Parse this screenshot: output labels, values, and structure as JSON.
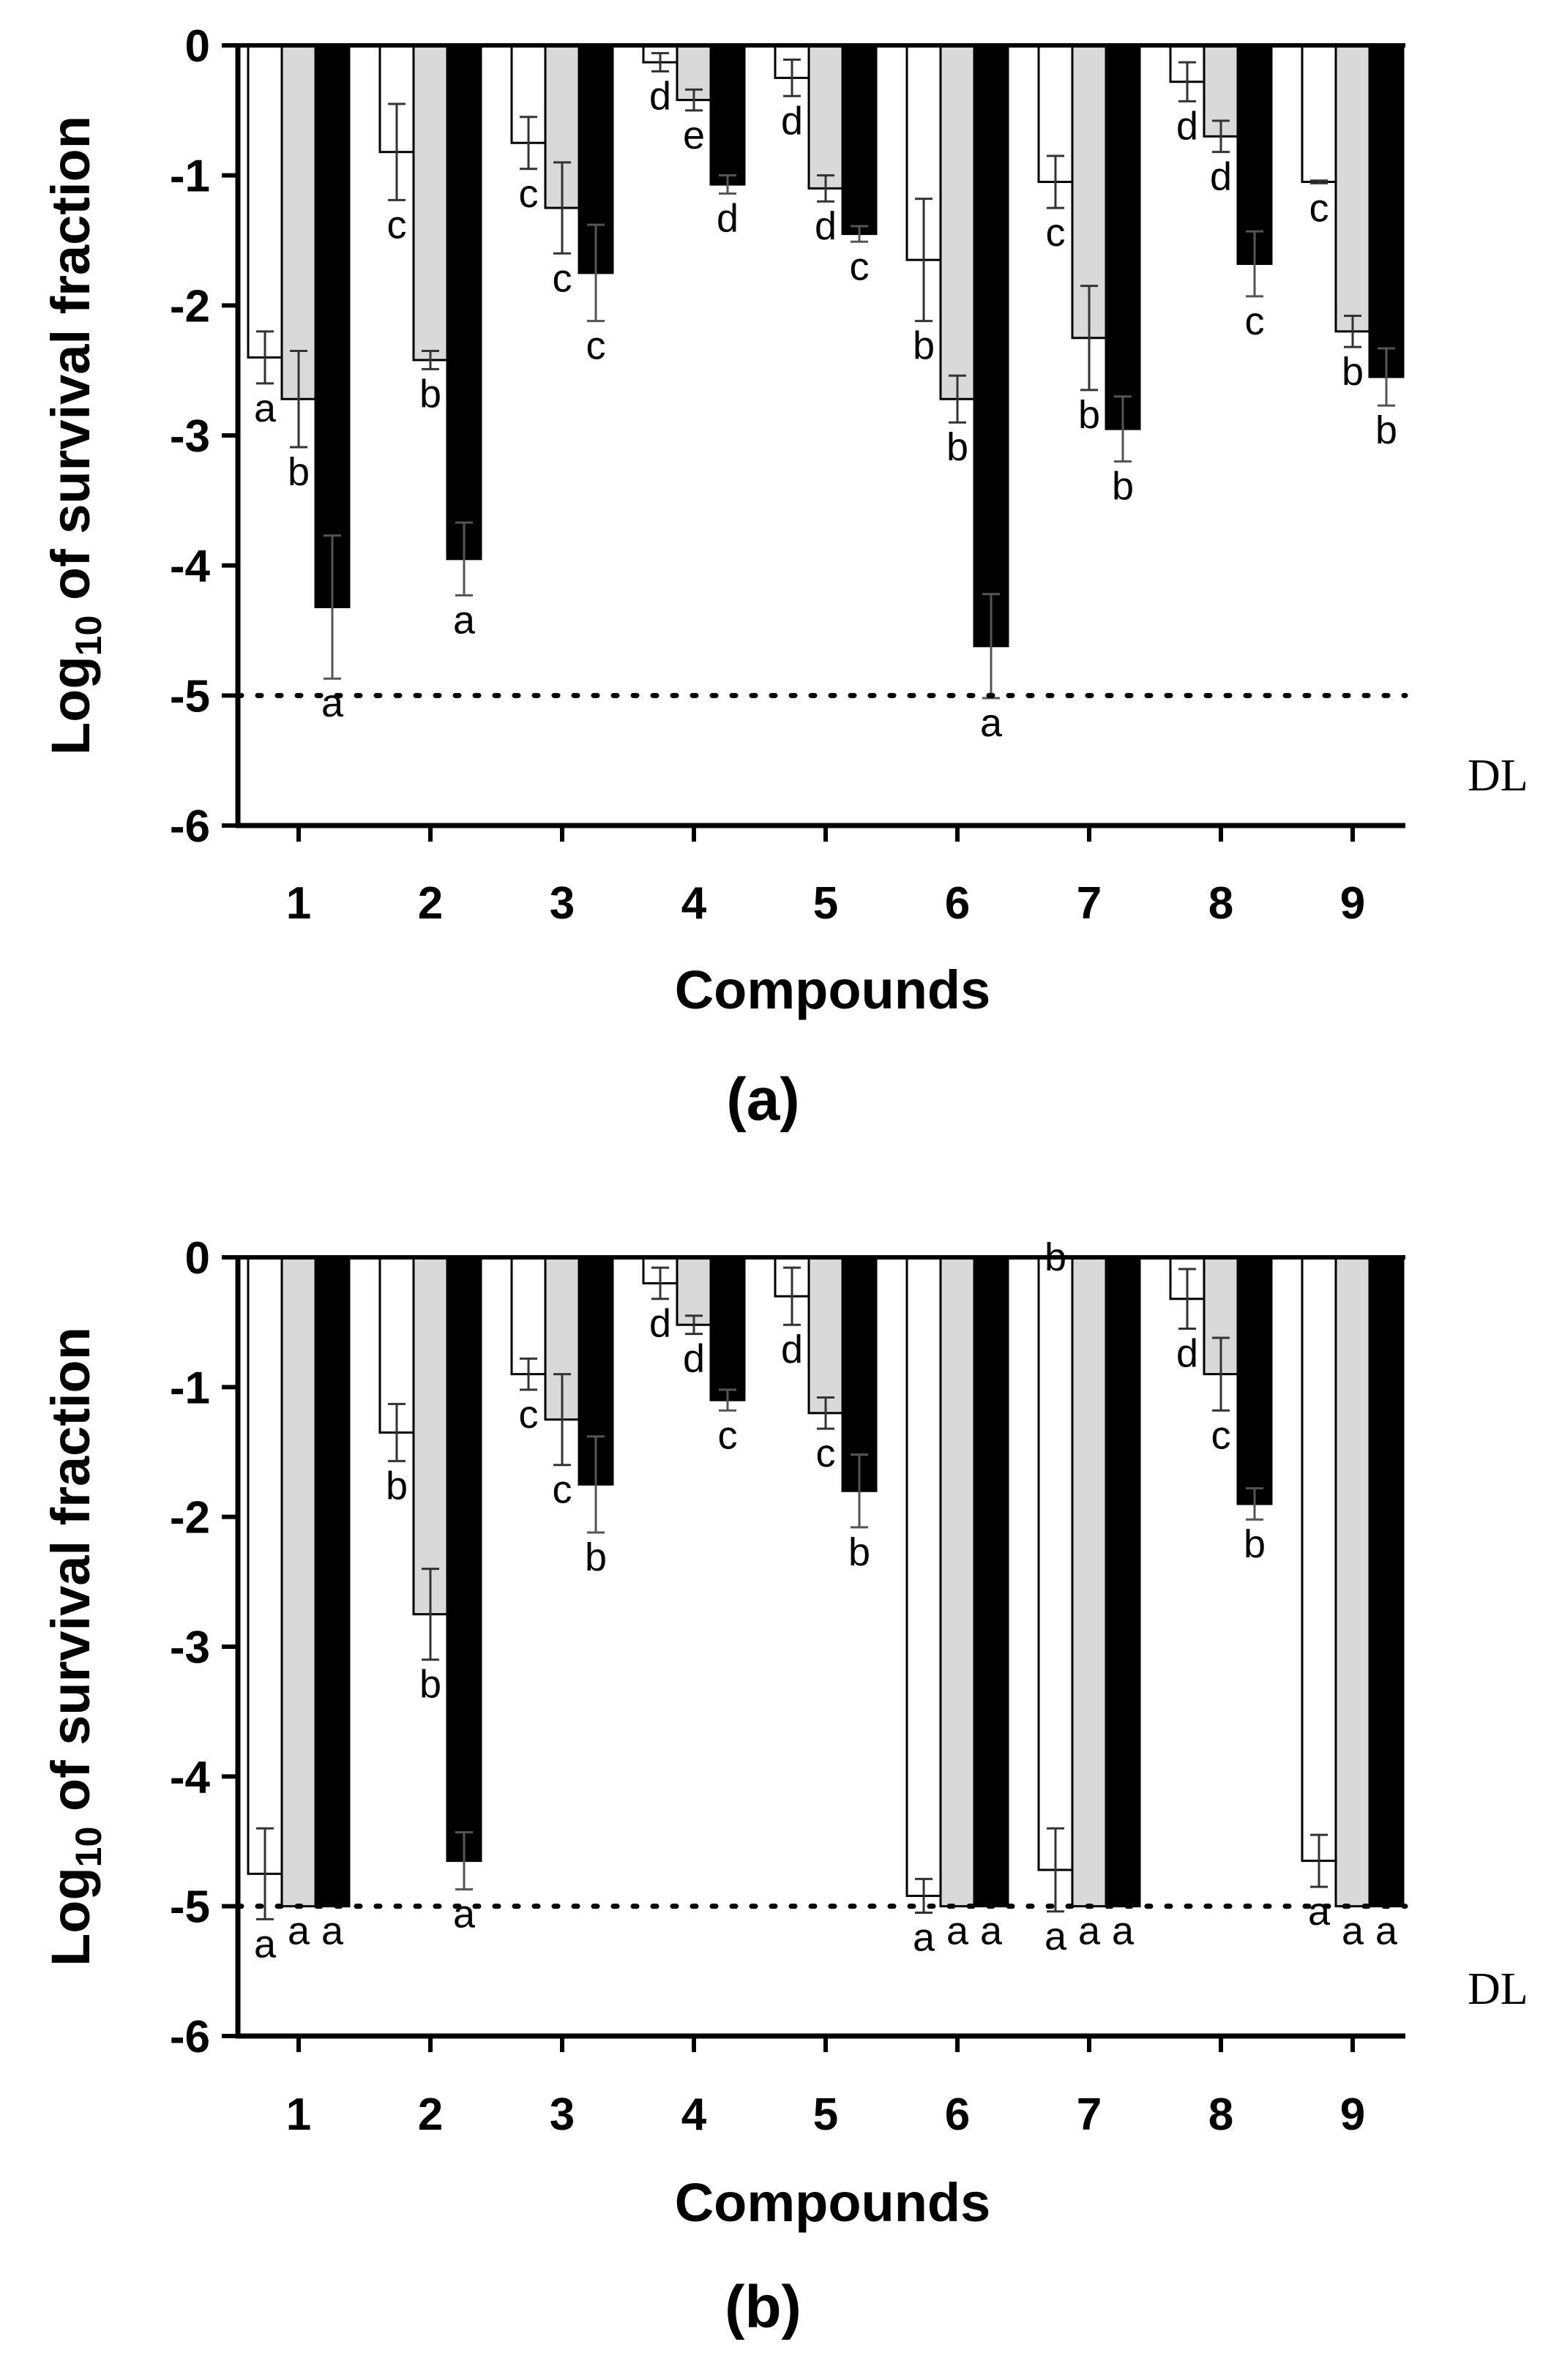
{
  "colors": {
    "control": "#ffffff",
    "mid": "#d9d9d9",
    "high": "#000000",
    "axis": "#000000",
    "error": "#333333"
  },
  "chart_data": [
    {
      "type": "bar",
      "panel": "(a)",
      "xlabel": "Compounds",
      "ylabel_main": "Log",
      "ylabel_sub": "10",
      "ylabel_rest": " of survival fraction",
      "ylim": [
        -6,
        0
      ],
      "yticks": [
        0,
        -1,
        -2,
        -3,
        -4,
        -5,
        -6
      ],
      "ytick_labels": [
        "0",
        "-1",
        "-2",
        "-3",
        "-4",
        "-5",
        "-6"
      ],
      "categories": [
        "1",
        "2",
        "3",
        "4",
        "5",
        "6",
        "7",
        "8",
        "9"
      ],
      "detection_limit": -5,
      "detection_label": "DL",
      "series": [
        {
          "name": "white",
          "color": "#ffffff",
          "values": [
            -2.4,
            -0.82,
            -0.75,
            -0.13,
            -0.25,
            -1.65,
            -1.05,
            -0.28,
            -1.05
          ],
          "errors": [
            0.2,
            0.37,
            0.2,
            0.07,
            0.14,
            0.47,
            0.2,
            0.15,
            0.01
          ],
          "letters": [
            "a",
            "c",
            "c",
            "d",
            "d",
            "b",
            "c",
            "d",
            "c"
          ]
        },
        {
          "name": "gray",
          "color": "#d9d9d9",
          "values": [
            -2.72,
            -2.42,
            -1.25,
            -0.42,
            -1.1,
            -2.72,
            -2.25,
            -0.7,
            -2.2
          ],
          "errors": [
            0.37,
            0.07,
            0.35,
            0.08,
            0.1,
            0.18,
            0.4,
            0.12,
            0.12
          ],
          "letters": [
            "b",
            "b",
            "c",
            "e",
            "d",
            "b",
            "b",
            "d",
            "b"
          ]
        },
        {
          "name": "black",
          "color": "#000000",
          "values": [
            -4.32,
            -3.95,
            -1.75,
            -1.07,
            -1.45,
            -4.62,
            -2.95,
            -1.68,
            -2.55
          ],
          "errors": [
            0.55,
            0.28,
            0.37,
            0.07,
            0.06,
            0.4,
            0.25,
            0.25,
            0.22
          ],
          "letters": [
            "a",
            "a",
            "c",
            "d",
            "c",
            "a",
            "b",
            "c",
            "b"
          ]
        }
      ]
    },
    {
      "type": "bar",
      "panel": "(b)",
      "xlabel": "Compounds",
      "ylabel_main": "Log",
      "ylabel_sub": "10",
      "ylabel_rest": " of survival fraction",
      "ylim": [
        -6,
        0
      ],
      "yticks": [
        0,
        -1,
        -2,
        -3,
        -4,
        -5,
        -6
      ],
      "ytick_labels": [
        "0",
        "-1",
        "-2",
        "-3",
        "-4",
        "-5",
        "-6"
      ],
      "categories": [
        "1",
        "2",
        "3",
        "4",
        "5",
        "6",
        "7",
        "8",
        "9"
      ],
      "detection_limit": -5,
      "detection_label": "DL",
      "series": [
        {
          "name": "white",
          "color": "#ffffff",
          "values": [
            -4.75,
            -1.35,
            -0.9,
            -0.2,
            -0.3,
            -4.92,
            -4.72,
            -0.32,
            -4.65
          ],
          "errors": [
            0.35,
            0.22,
            0.12,
            0.12,
            0.22,
            0.13,
            0.32,
            0.23,
            0.2
          ],
          "letters": [
            "a",
            "b",
            "c",
            "d",
            "d",
            "a",
            "a",
            "d",
            "a"
          ]
        },
        {
          "name": "gray",
          "color": "#d9d9d9",
          "values": [
            -5,
            -2.75,
            -1.25,
            -0.52,
            -1.2,
            -5,
            -5,
            -0.9,
            -5
          ],
          "errors": [
            0,
            0.35,
            0.35,
            0.07,
            0.12,
            0,
            0,
            0.28,
            0
          ],
          "letters": [
            "a",
            "b",
            "c",
            "d",
            "c",
            "a",
            "a",
            "c",
            "a"
          ]
        },
        {
          "name": "black",
          "color": "#000000",
          "values": [
            -5,
            -4.65,
            -1.75,
            -1.1,
            -1.8,
            -5,
            -5,
            -1.9,
            -5
          ],
          "errors": [
            0,
            0.22,
            0.37,
            0.08,
            0.28,
            0,
            0,
            0.12,
            0
          ],
          "letters": [
            "a",
            "a",
            "b",
            "c",
            "b",
            "a",
            "a",
            "b",
            "a"
          ]
        }
      ],
      "extra_letters": [
        {
          "category": "7",
          "text": "b"
        }
      ]
    }
  ]
}
